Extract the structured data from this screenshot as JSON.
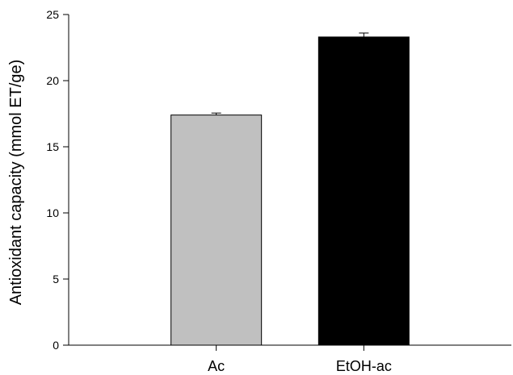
{
  "chart_data": {
    "type": "bar",
    "title": "",
    "xlabel": "",
    "ylabel": "Antioxidant capacity (mmol ET/ge)",
    "categories": [
      "Ac",
      "EtOH-ac"
    ],
    "values": [
      17.4,
      23.3
    ],
    "error_bars": [
      0.15,
      0.3
    ],
    "bar_colors": [
      "#c0c0c0",
      "#000000"
    ],
    "ylim": [
      0,
      25
    ],
    "yticks": [
      0,
      5,
      10,
      15,
      20,
      25
    ],
    "grid": false,
    "legend": "none"
  }
}
